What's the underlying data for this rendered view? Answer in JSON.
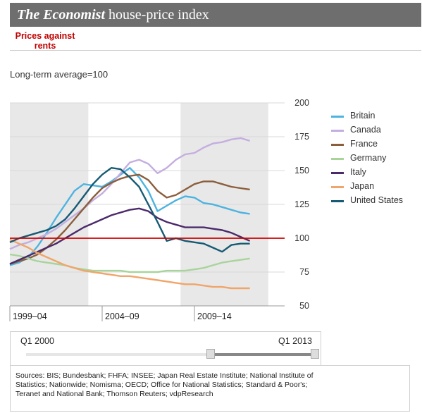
{
  "header": {
    "title_italic": "The Economist",
    "title_rest": "house-price index"
  },
  "tab": {
    "line1": "Prices against",
    "line2": "rents"
  },
  "subtitle": "Long-term average=100",
  "slider": {
    "start_label": "Q1 2000",
    "end_label": "Q1 2013"
  },
  "sources": "Sources: BIS; Bundesbank; FHFA; INSEE; Japan Real Estate Institute; National Institute of Statistics; Nationwide; Nomisma; OECD; Office for National Statistics; Standard & Poor's; Teranet and National Bank; Thomson Reuters; vdpResearch",
  "chart_data": {
    "type": "line",
    "title": "Prices against rents",
    "subtitle": "Long-term average=100",
    "x_tick_labels": [
      "1999–04",
      "2004–09",
      "2009–14"
    ],
    "xlim": [
      2000,
      2013
    ],
    "ylim": [
      50,
      200
    ],
    "y_ticks": [
      50,
      75,
      100,
      125,
      150,
      175,
      200
    ],
    "y_axis_side": "right",
    "reference_line": {
      "y": 100,
      "color": "#d00000"
    },
    "shaded_bands": [
      [
        1999,
        2004.25
      ],
      [
        2009.25,
        2014
      ]
    ],
    "legend_position": "right",
    "x": [
      2000,
      2000.5,
      2001,
      2001.5,
      2002,
      2002.5,
      2003,
      2003.5,
      2004,
      2004.5,
      2005,
      2005.5,
      2006,
      2006.5,
      2007,
      2007.5,
      2008,
      2008.5,
      2009,
      2009.5,
      2010,
      2010.5,
      2011,
      2011.5,
      2012,
      2012.5,
      2013
    ],
    "series": [
      {
        "name": "Britain",
        "color": "#4db3e0",
        "values": [
          80,
          82,
          86,
          94,
          104,
          115,
          125,
          135,
          140,
          139,
          138,
          142,
          147,
          152,
          145,
          135,
          120,
          124,
          128,
          131,
          130,
          126,
          125,
          123,
          121,
          119,
          118
        ]
      },
      {
        "name": "Canada",
        "color": "#c4aee0",
        "values": [
          92,
          95,
          97,
          100,
          103,
          107,
          112,
          117,
          122,
          128,
          133,
          140,
          148,
          156,
          158,
          155,
          148,
          152,
          158,
          162,
          163,
          167,
          170,
          171,
          173,
          174,
          172
        ]
      },
      {
        "name": "France",
        "color": "#8b5e3c",
        "values": [
          81,
          83,
          85,
          88,
          93,
          99,
          106,
          114,
          122,
          130,
          137,
          141,
          144,
          146,
          147,
          143,
          135,
          130,
          132,
          136,
          140,
          142,
          142,
          140,
          138,
          137,
          136
        ]
      },
      {
        "name": "Germany",
        "color": "#a8d49c",
        "values": [
          88,
          87,
          85,
          83,
          82,
          81,
          80,
          78,
          77,
          76,
          76,
          76,
          76,
          75,
          75,
          75,
          75,
          76,
          76,
          76,
          77,
          78,
          80,
          82,
          83,
          84,
          85
        ]
      },
      {
        "name": "Italy",
        "color": "#4b2a6b",
        "values": [
          81,
          84,
          87,
          90,
          93,
          96,
          100,
          104,
          108,
          111,
          114,
          117,
          119,
          121,
          122,
          120,
          115,
          112,
          110,
          108,
          108,
          108,
          107,
          106,
          104,
          101,
          98
        ]
      },
      {
        "name": "Japan",
        "color": "#f0a56a",
        "values": [
          99,
          96,
          93,
          89,
          86,
          83,
          80,
          78,
          76,
          75,
          74,
          73,
          72,
          72,
          71,
          70,
          69,
          68,
          67,
          66,
          66,
          65,
          64,
          64,
          63,
          63,
          63
        ]
      },
      {
        "name": "United States",
        "color": "#155a73",
        "values": [
          97,
          100,
          102,
          104,
          106,
          109,
          114,
          122,
          131,
          140,
          147,
          152,
          151,
          145,
          138,
          125,
          112,
          98,
          100,
          98,
          97,
          96,
          93,
          90,
          95,
          96,
          96
        ]
      }
    ]
  }
}
